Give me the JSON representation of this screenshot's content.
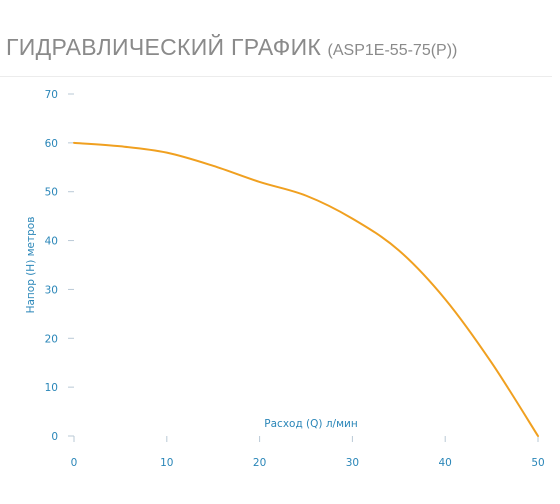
{
  "header": {
    "title": "ГИДРАВЛИЧЕСКИЙ ГРАФИК",
    "model": "(ASP1E-55-75(P))"
  },
  "chart_data": {
    "type": "line",
    "xlabel": "Расход (Q) л/мин",
    "ylabel": "Напор (H) метров",
    "xlim": [
      0,
      50
    ],
    "ylim": [
      0,
      70
    ],
    "x_ticks": [
      "0",
      "10",
      "20",
      "30",
      "40",
      "50"
    ],
    "y_ticks": [
      "0",
      "10",
      "20",
      "30",
      "40",
      "50",
      "60",
      "70"
    ],
    "grid": false,
    "series": [
      {
        "color": "#f0a020",
        "points": [
          {
            "x": 0,
            "y": 60
          },
          {
            "x": 5,
            "y": 59.3
          },
          {
            "x": 10,
            "y": 58
          },
          {
            "x": 15,
            "y": 55.3
          },
          {
            "x": 20,
            "y": 52
          },
          {
            "x": 25,
            "y": 49.2
          },
          {
            "x": 30,
            "y": 44.5
          },
          {
            "x": 35,
            "y": 38
          },
          {
            "x": 40,
            "y": 28
          },
          {
            "x": 45,
            "y": 15
          },
          {
            "x": 50,
            "y": 0
          }
        ]
      }
    ]
  },
  "colors": {
    "axis_text": "#2a86b8",
    "tick_mark": "#b9c9d6",
    "title": "#8a8a8a"
  }
}
